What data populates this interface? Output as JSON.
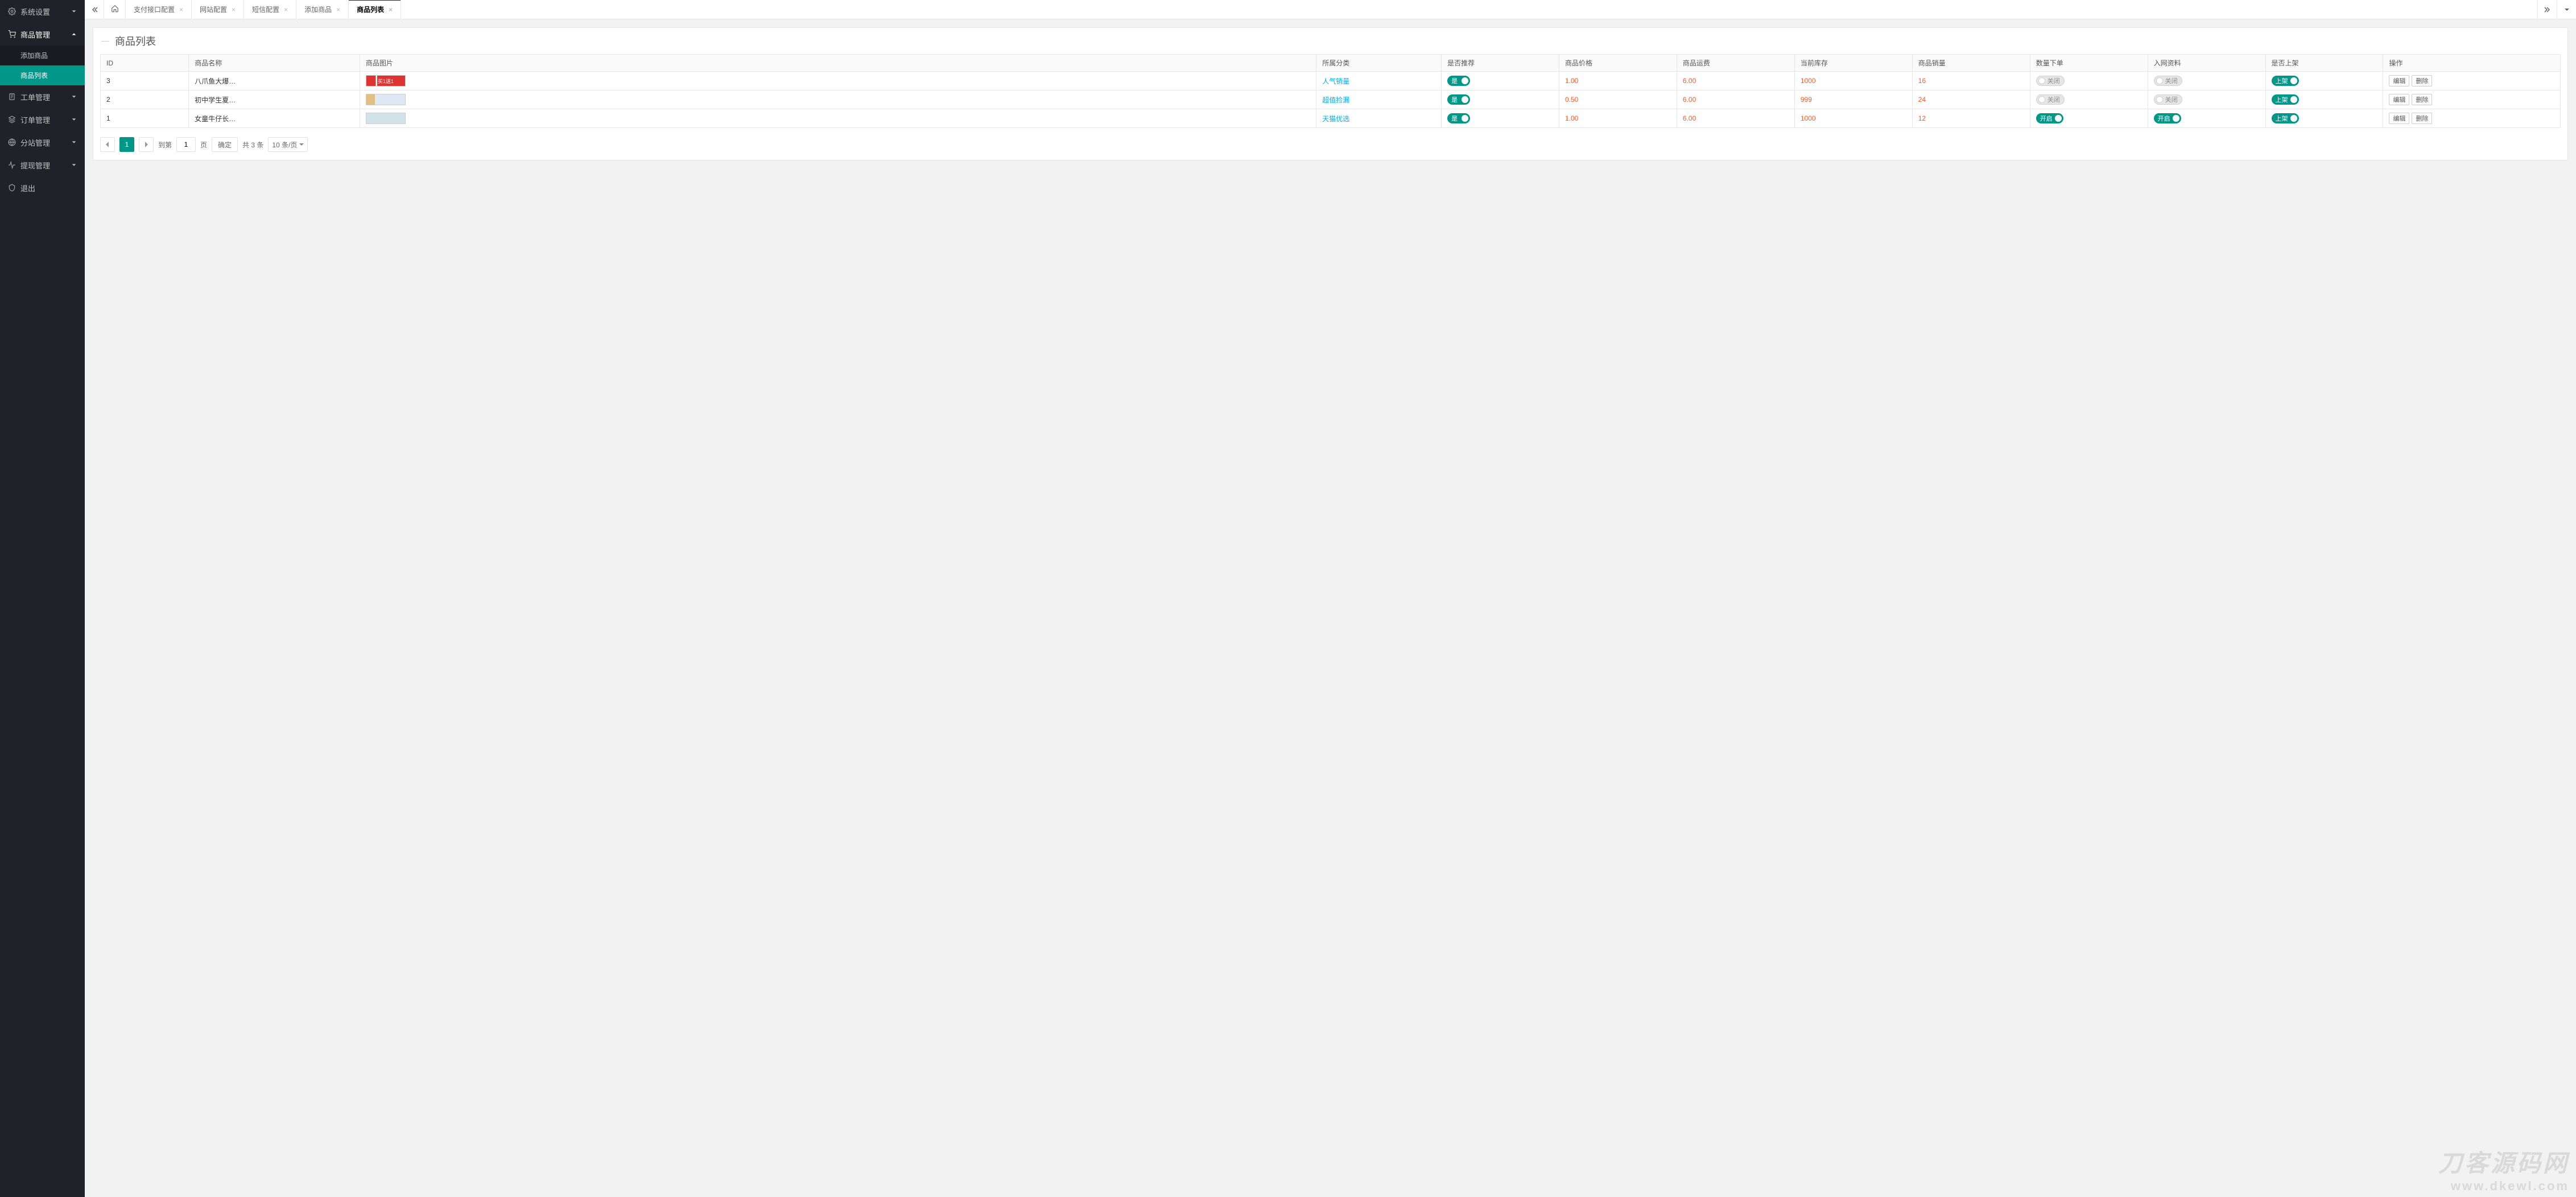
{
  "colors": {
    "accent": "#009688",
    "sidebar_bg": "#20222a",
    "sidebar_sub_bg": "#1a1c22",
    "page_bg": "#f2f2f2",
    "border": "#e6e6e6",
    "link": "#01aaed",
    "danger": "#ff5722",
    "watermark": "#d9d9d9"
  },
  "sidebar": {
    "items": [
      {
        "label": "系统设置",
        "icon": "gear",
        "expanded": false
      },
      {
        "label": "商品管理",
        "icon": "cart",
        "expanded": true,
        "children": [
          {
            "label": "添加商品",
            "active": false
          },
          {
            "label": "商品列表",
            "active": true
          }
        ]
      },
      {
        "label": "工单管理",
        "icon": "clipboard",
        "expanded": false
      },
      {
        "label": "订单管理",
        "icon": "stack",
        "expanded": false
      },
      {
        "label": "分站管理",
        "icon": "globe",
        "expanded": false
      },
      {
        "label": "提现管理",
        "icon": "pulse",
        "expanded": false
      },
      {
        "label": "退出",
        "icon": "shield",
        "expanded": false,
        "leaf": true
      }
    ]
  },
  "tabs": {
    "items": [
      {
        "label": "支付接口配置",
        "active": false
      },
      {
        "label": "网站配置",
        "active": false
      },
      {
        "label": "短信配置",
        "active": false
      },
      {
        "label": "添加商品",
        "active": false
      },
      {
        "label": "商品列表",
        "active": true
      }
    ]
  },
  "page": {
    "title": "商品列表"
  },
  "table": {
    "columns": {
      "id": "ID",
      "name": "商品名称",
      "image": "商品图片",
      "category": "所属分类",
      "recommend": "是否推荐",
      "price": "商品价格",
      "shipping": "商品运费",
      "stock": "当前库存",
      "sales": "商品销量",
      "qty_order": "数量下单",
      "net_info": "入网资料",
      "on_shelf": "是否上架",
      "op": "操作"
    },
    "switch_labels": {
      "yes": "是",
      "open": "开启",
      "close": "关闭",
      "on_shelf": "上架"
    },
    "actions": {
      "edit": "编辑",
      "delete": "删除"
    },
    "rows": [
      {
        "id": "3",
        "name": "八爪鱼大爆…",
        "img_text": "买1送1",
        "img_class": "p1",
        "category": "人气销量",
        "recommend": true,
        "price": "1.00",
        "shipping": "6.00",
        "stock": "1000",
        "sales": "16",
        "qty_order": false,
        "net_info": false,
        "on_shelf": true
      },
      {
        "id": "2",
        "name": "初中学生夏…",
        "img_text": "",
        "img_class": "p2",
        "category": "超值捡漏",
        "recommend": true,
        "price": "0.50",
        "shipping": "6.00",
        "stock": "999",
        "sales": "24",
        "qty_order": false,
        "net_info": false,
        "on_shelf": true
      },
      {
        "id": "1",
        "name": "女童牛仔长…",
        "img_text": "",
        "img_class": "p3",
        "category": "天猫优选",
        "recommend": true,
        "price": "1.00",
        "shipping": "6.00",
        "stock": "1000",
        "sales": "12",
        "qty_order": true,
        "net_info": true,
        "on_shelf": true
      }
    ]
  },
  "pager": {
    "current_page": "1",
    "goto_label_prefix": "到第",
    "goto_value": "1",
    "goto_label_suffix": "页",
    "confirm": "确定",
    "total_label": "共 3 条",
    "page_size_label": "10 条/页"
  },
  "watermark": {
    "line1": "刀客源码网",
    "line2": "www.dkewl.com"
  }
}
